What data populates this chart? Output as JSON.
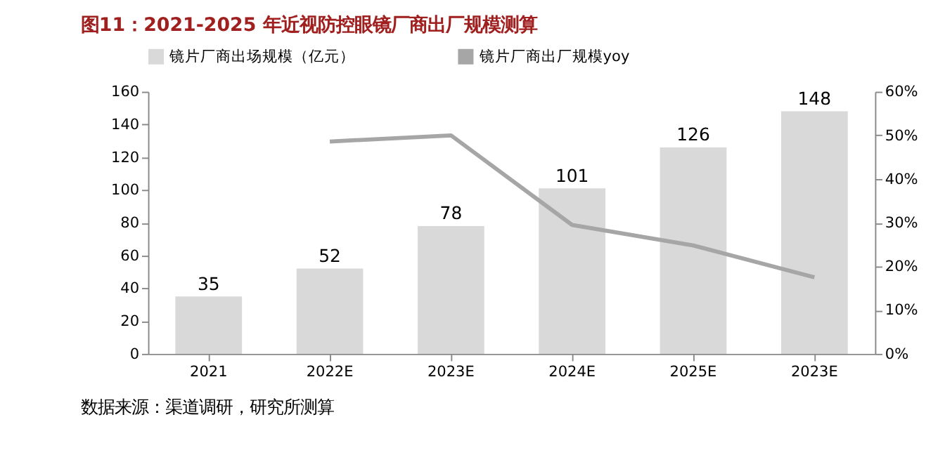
{
  "chart_data": {
    "type": "bar",
    "title": "图11：2021-2025 年近视防控眼镜厂商出厂规模测算",
    "categories": [
      "2021",
      "2022E",
      "2023E",
      "2024E",
      "2025E",
      "2023E"
    ],
    "series": [
      {
        "name": "镜片厂商出场规模（亿元）",
        "color": "#d9d9d9",
        "values": [
          35,
          52,
          78,
          101,
          126,
          148
        ],
        "value_labels": [
          "35",
          "52",
          "78",
          "101",
          "126",
          "148"
        ]
      },
      {
        "name": "镜片厂商出厂规模yoy",
        "type": "line",
        "axis": "y2",
        "color": "#a6a6a6",
        "values": [
          null,
          48.6,
          50,
          29.5,
          24.8,
          17.5
        ]
      }
    ],
    "ylim": [
      0,
      160
    ],
    "yticks": [
      0,
      20,
      40,
      60,
      80,
      100,
      120,
      140,
      160
    ],
    "y2lim": [
      0,
      60
    ],
    "y2ticks": [
      {
        "value": 0,
        "label": "0%"
      },
      {
        "value": 10,
        "label": "10%"
      },
      {
        "value": 20,
        "label": "20%"
      },
      {
        "value": 30,
        "label": "30%"
      },
      {
        "value": 40,
        "label": "40%"
      },
      {
        "value": 50,
        "label": "50%"
      },
      {
        "value": 60,
        "label": "60%"
      }
    ],
    "grid": false,
    "legend": "top",
    "marker": "none",
    "line_style": "solid",
    "annotations": [
      "数据来源：渠道调研，研究所测算"
    ]
  }
}
